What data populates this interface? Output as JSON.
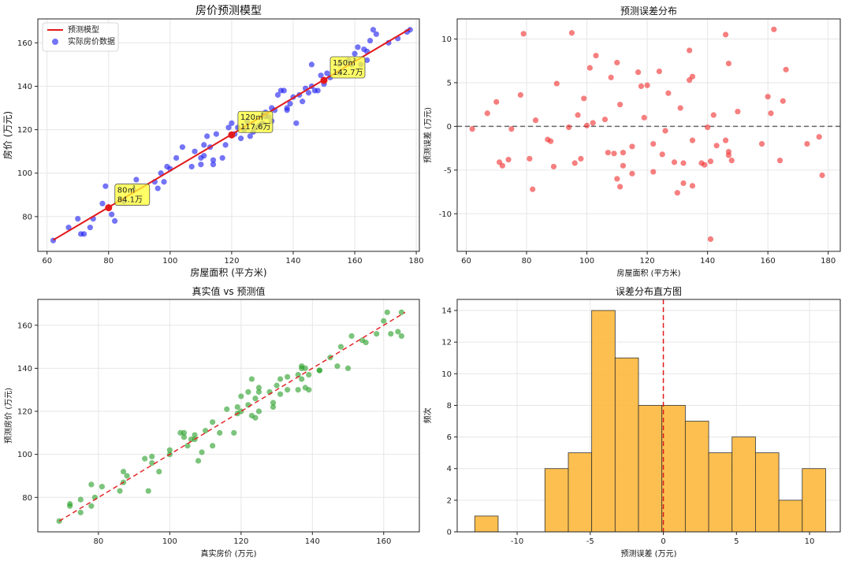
{
  "charts": [
    {
      "id": "p1",
      "type": "scatter",
      "title": "房价预测模型",
      "xlabel": "房屋面积 (平方米)",
      "ylabel": "房价 (万元)",
      "xlim": [
        57,
        181
      ],
      "ylim": [
        64,
        171
      ],
      "xticks": [
        60,
        80,
        100,
        120,
        140,
        160,
        180
      ],
      "yticks": [
        80,
        100,
        120,
        140,
        160
      ],
      "grid": true,
      "legend": {
        "position": "top-left",
        "items": [
          {
            "label": "预测模型",
            "kind": "line",
            "color": "#e31a1c"
          },
          {
            "label": "实际房价数据",
            "kind": "dot",
            "color": "#1f1ff0"
          }
        ]
      },
      "line": {
        "x": [
          62,
          178
        ],
        "y": [
          69.2,
          166.5
        ],
        "color": "#e31a1c"
      },
      "points": {
        "color": "#1f1ff0",
        "data": [
          [
            62,
            69
          ],
          [
            67,
            75
          ],
          [
            70,
            79
          ],
          [
            71,
            72
          ],
          [
            72,
            72
          ],
          [
            74,
            75
          ],
          [
            75,
            79
          ],
          [
            78,
            86
          ],
          [
            79,
            94
          ],
          [
            81,
            81
          ],
          [
            82,
            78
          ],
          [
            85,
            87
          ],
          [
            88,
            92
          ],
          [
            89,
            97
          ],
          [
            95,
            96
          ],
          [
            96,
            93
          ],
          [
            97,
            100
          ],
          [
            98,
            96
          ],
          [
            99,
            103
          ],
          [
            100,
            102
          ],
          [
            102,
            107
          ],
          [
            104,
            112
          ],
          [
            107,
            103
          ],
          [
            108,
            110
          ],
          [
            110,
            104
          ],
          [
            110,
            107
          ],
          [
            111,
            113
          ],
          [
            111,
            108
          ],
          [
            112,
            117
          ],
          [
            113,
            112
          ],
          [
            114,
            104
          ],
          [
            114,
            106
          ],
          [
            115,
            118
          ],
          [
            117,
            107
          ],
          [
            118,
            113
          ],
          [
            119,
            121
          ],
          [
            120,
            123
          ],
          [
            121,
            118
          ],
          [
            122,
            121
          ],
          [
            123,
            116
          ],
          [
            124,
            120
          ],
          [
            125,
            124
          ],
          [
            126,
            117
          ],
          [
            127,
            119
          ],
          [
            128,
            121
          ],
          [
            129,
            122
          ],
          [
            130,
            123
          ],
          [
            131,
            128
          ],
          [
            132,
            126
          ],
          [
            133,
            130
          ],
          [
            133,
            124
          ],
          [
            134,
            129
          ],
          [
            135,
            136
          ],
          [
            136,
            138
          ],
          [
            137,
            138
          ],
          [
            138,
            130
          ],
          [
            139,
            132
          ],
          [
            140,
            135
          ],
          [
            141,
            123
          ],
          [
            142,
            136
          ],
          [
            143,
            133
          ],
          [
            144,
            139
          ],
          [
            145,
            137
          ],
          [
            146,
            140
          ],
          [
            147,
            138
          ],
          [
            148,
            138
          ],
          [
            149,
            145
          ],
          [
            150,
            141
          ],
          [
            151,
            146
          ],
          [
            152,
            144
          ],
          [
            155,
            150
          ],
          [
            158,
            152
          ],
          [
            159,
            150
          ],
          [
            160,
            155
          ],
          [
            161,
            158
          ],
          [
            163,
            157
          ],
          [
            164,
            156
          ],
          [
            165,
            161
          ],
          [
            166,
            166
          ],
          [
            167,
            164
          ],
          [
            171,
            160
          ],
          [
            174,
            162
          ],
          [
            177,
            165
          ],
          [
            178,
            166
          ],
          [
            146,
            150
          ],
          [
            155,
            146
          ],
          [
            162,
            150
          ],
          [
            164,
            152
          ],
          [
            138,
            129
          ],
          [
            131,
            126
          ]
        ]
      },
      "predictions": [
        {
          "x": 80,
          "y": 84.1,
          "label1": "80㎡",
          "label2": "84.1万"
        },
        {
          "x": 120,
          "y": 117.6,
          "label1": "120㎡",
          "label2": "117.6万"
        },
        {
          "x": 150,
          "y": 142.7,
          "label1": "150㎡",
          "label2": "142.7万"
        }
      ]
    },
    {
      "id": "p2",
      "type": "scatter",
      "title": "预测误差分布",
      "xlabel": "房屋面积 (平方米)",
      "ylabel": "预测误差 (万元)",
      "xlim": [
        57,
        184
      ],
      "ylim": [
        -14.3,
        12.3
      ],
      "xticks": [
        60,
        80,
        100,
        120,
        140,
        160,
        180
      ],
      "yticks": [
        -10,
        -5,
        0,
        5,
        10
      ],
      "grid": true,
      "hline": {
        "y": 0,
        "color": "#666666",
        "dash": "6,4"
      },
      "points": {
        "color": "#f03030",
        "data": [
          [
            62,
            -0.3
          ],
          [
            67,
            1.5
          ],
          [
            70,
            2.8
          ],
          [
            71,
            -4.1
          ],
          [
            72,
            -4.5
          ],
          [
            74,
            -3.8
          ],
          [
            75,
            -0.3
          ],
          [
            78,
            3.6
          ],
          [
            79,
            10.6
          ],
          [
            81,
            -3.7
          ],
          [
            82,
            -7.2
          ],
          [
            83,
            0.7
          ],
          [
            87,
            -1.5
          ],
          [
            88,
            -1.7
          ],
          [
            89,
            -4.6
          ],
          [
            90,
            4.9
          ],
          [
            94,
            -0.1
          ],
          [
            95,
            10.7
          ],
          [
            96,
            -4.2
          ],
          [
            97,
            1.3
          ],
          [
            98,
            -3.7
          ],
          [
            99,
            3.2
          ],
          [
            100,
            0.1
          ],
          [
            101,
            6.7
          ],
          [
            102,
            0.4
          ],
          [
            103,
            8.1
          ],
          [
            106,
            0.8
          ],
          [
            107,
            -3.0
          ],
          [
            108,
            5.6
          ],
          [
            109,
            -3.1
          ],
          [
            110,
            7.3
          ],
          [
            110,
            -6.0
          ],
          [
            111,
            2.5
          ],
          [
            111,
            -6.9
          ],
          [
            112,
            -4.5
          ],
          [
            112,
            -3.0
          ],
          [
            115,
            -2.3
          ],
          [
            115,
            -5.4
          ],
          [
            117,
            6.2
          ],
          [
            118,
            4.6
          ],
          [
            119,
            1.0
          ],
          [
            120,
            4.7
          ],
          [
            122,
            -5.2
          ],
          [
            122,
            -2.0
          ],
          [
            124,
            6.3
          ],
          [
            125,
            -3.2
          ],
          [
            126,
            -0.5
          ],
          [
            127,
            3.8
          ],
          [
            129,
            -4.1
          ],
          [
            130,
            -7.6
          ],
          [
            131,
            2.1
          ],
          [
            132,
            -6.5
          ],
          [
            132,
            -4.2
          ],
          [
            134,
            5.3
          ],
          [
            134,
            8.7
          ],
          [
            135,
            5.7
          ],
          [
            135,
            -1.6
          ],
          [
            135,
            -6.8
          ],
          [
            138,
            -4.2
          ],
          [
            139,
            -4.4
          ],
          [
            140,
            -0.1
          ],
          [
            141,
            -4.0
          ],
          [
            141,
            -12.9
          ],
          [
            142,
            1.3
          ],
          [
            143,
            -2.2
          ],
          [
            146,
            10.5
          ],
          [
            146,
            -1.6
          ],
          [
            147,
            -2.9
          ],
          [
            147,
            -3.3
          ],
          [
            147,
            7.2
          ],
          [
            148,
            -3.9
          ],
          [
            150,
            1.7
          ],
          [
            158,
            -2.0
          ],
          [
            160,
            3.4
          ],
          [
            161,
            1.5
          ],
          [
            162,
            11.1
          ],
          [
            164,
            -3.9
          ],
          [
            165,
            2.9
          ],
          [
            166,
            6.5
          ],
          [
            173,
            -2.0
          ],
          [
            177,
            -1.2
          ],
          [
            178,
            -5.6
          ]
        ]
      }
    },
    {
      "id": "p3",
      "type": "scatter",
      "title": "真实值 vs 预测值",
      "xlabel": "真实房价 (万元)",
      "ylabel": "预测房价 (万元)",
      "xlim": [
        63,
        170
      ],
      "ylim": [
        64,
        172
      ],
      "xticks": [
        80,
        100,
        120,
        140,
        160
      ],
      "yticks": [
        80,
        100,
        120,
        140,
        160
      ],
      "grid": true,
      "diagline": {
        "x": [
          69,
          166
        ],
        "y": [
          69,
          166
        ],
        "color": "#e31a1c",
        "dash": "6,4"
      },
      "points": {
        "color": "#2ca02c",
        "data": [
          [
            69,
            69
          ],
          [
            72,
            77
          ],
          [
            72,
            76
          ],
          [
            75,
            73
          ],
          [
            75,
            79
          ],
          [
            78,
            76
          ],
          [
            79,
            80
          ],
          [
            78,
            86
          ],
          [
            81,
            85
          ],
          [
            86,
            83
          ],
          [
            87,
            87
          ],
          [
            87,
            92
          ],
          [
            88,
            90
          ],
          [
            93,
            98
          ],
          [
            94,
            83
          ],
          [
            95,
            99
          ],
          [
            95,
            96
          ],
          [
            97,
            92
          ],
          [
            100,
            102
          ],
          [
            100,
            100
          ],
          [
            103,
            110
          ],
          [
            104,
            110
          ],
          [
            104,
            108
          ],
          [
            105,
            104
          ],
          [
            106,
            107
          ],
          [
            107,
            109
          ],
          [
            107,
            107
          ],
          [
            108,
            97
          ],
          [
            109,
            101
          ],
          [
            110,
            111
          ],
          [
            112,
            115
          ],
          [
            112,
            104
          ],
          [
            114,
            110
          ],
          [
            116,
            121
          ],
          [
            118,
            110
          ],
          [
            119,
            119
          ],
          [
            119,
            122
          ],
          [
            120,
            127
          ],
          [
            120,
            120
          ],
          [
            122,
            123
          ],
          [
            122,
            129
          ],
          [
            123,
            118
          ],
          [
            123,
            135
          ],
          [
            124,
            126
          ],
          [
            124,
            117
          ],
          [
            125,
            131
          ],
          [
            125,
            129
          ],
          [
            125,
            120
          ],
          [
            128,
            129
          ],
          [
            129,
            124
          ],
          [
            129,
            122
          ],
          [
            130,
            132
          ],
          [
            131,
            135
          ],
          [
            131,
            128
          ],
          [
            133,
            136
          ],
          [
            133,
            130
          ],
          [
            136,
            137
          ],
          [
            136,
            130
          ],
          [
            137,
            141
          ],
          [
            137,
            140
          ],
          [
            137,
            135
          ],
          [
            138,
            140
          ],
          [
            138,
            131
          ],
          [
            139,
            137
          ],
          [
            139,
            130
          ],
          [
            142,
            139
          ],
          [
            142,
            139
          ],
          [
            145,
            145
          ],
          [
            147,
            141
          ],
          [
            148,
            150
          ],
          [
            150,
            140
          ],
          [
            151,
            155
          ],
          [
            154,
            153
          ],
          [
            155,
            152
          ],
          [
            158,
            156
          ],
          [
            160,
            162
          ],
          [
            161,
            166
          ],
          [
            162,
            156
          ],
          [
            164,
            157
          ],
          [
            165,
            155
          ],
          [
            165,
            166
          ]
        ]
      }
    },
    {
      "id": "p4",
      "type": "bar",
      "title": "误差分布直方图",
      "xlabel": "预测误差 (万元)",
      "ylabel": "频次",
      "xlim": [
        -14.1,
        12.1
      ],
      "ylim": [
        0,
        14.7
      ],
      "xticks": [
        -10,
        -5,
        0,
        5,
        10
      ],
      "xtick_labels": [
        "-10",
        "-5",
        "0",
        "5",
        "10"
      ],
      "yticks": [
        0,
        2,
        4,
        6,
        8,
        10,
        12,
        14
      ],
      "grid": true,
      "bar_color": "#fdb83c",
      "edge_color": "#333333",
      "vline": {
        "x": 0,
        "color": "#e31a1c",
        "dash": "6,4"
      },
      "bins": [
        {
          "x0": -12.9,
          "x1": -11.3,
          "count": 1
        },
        {
          "x0": -11.3,
          "x1": -9.7,
          "count": 0
        },
        {
          "x0": -9.7,
          "x1": -8.1,
          "count": 0
        },
        {
          "x0": -8.1,
          "x1": -6.5,
          "count": 4
        },
        {
          "x0": -6.5,
          "x1": -4.9,
          "count": 5
        },
        {
          "x0": -4.9,
          "x1": -3.3,
          "count": 14
        },
        {
          "x0": -3.3,
          "x1": -1.7,
          "count": 11
        },
        {
          "x0": -1.7,
          "x1": -0.1,
          "count": 8
        },
        {
          "x0": -0.1,
          "x1": 1.5,
          "count": 8
        },
        {
          "x0": 1.5,
          "x1": 3.1,
          "count": 7
        },
        {
          "x0": 3.1,
          "x1": 4.7,
          "count": 5
        },
        {
          "x0": 4.7,
          "x1": 6.3,
          "count": 6
        },
        {
          "x0": 6.3,
          "x1": 7.9,
          "count": 5
        },
        {
          "x0": 7.9,
          "x1": 9.5,
          "count": 2
        },
        {
          "x0": 9.5,
          "x1": 11.1,
          "count": 4
        }
      ]
    }
  ]
}
